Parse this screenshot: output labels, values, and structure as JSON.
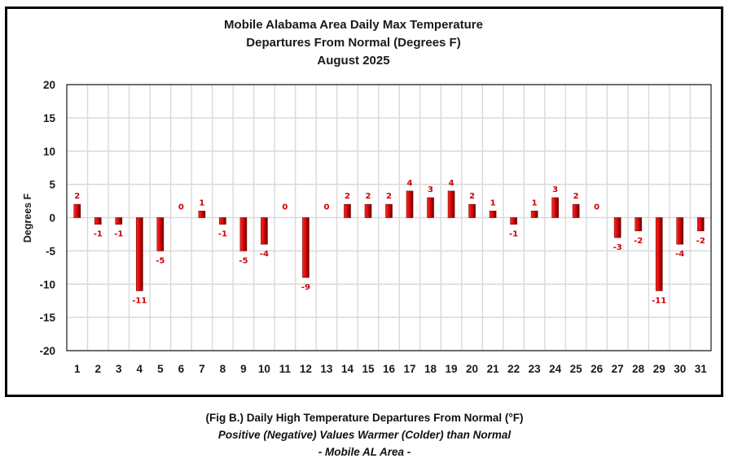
{
  "chart_data": {
    "type": "bar",
    "title": [
      "Mobile Alabama Area Daily Max Temperature",
      "Departures From Normal (Degrees F)",
      "August 2025"
    ],
    "xlabel": "",
    "ylabel": "Degrees F",
    "ylim": [
      -20,
      20
    ],
    "yticks": [
      20,
      15,
      10,
      5,
      0,
      -5,
      -10,
      -15,
      -20
    ],
    "grid": true,
    "categories": [
      "1",
      "2",
      "3",
      "4",
      "5",
      "6",
      "7",
      "8",
      "9",
      "10",
      "11",
      "12",
      "13",
      "14",
      "15",
      "16",
      "17",
      "18",
      "19",
      "20",
      "21",
      "22",
      "23",
      "24",
      "25",
      "26",
      "27",
      "28",
      "29",
      "30",
      "31"
    ],
    "values": [
      2,
      -1,
      -1,
      -11,
      -5,
      0,
      1,
      -1,
      -5,
      -4,
      0,
      -9,
      0,
      2,
      2,
      2,
      4,
      3,
      4,
      2,
      1,
      -1,
      1,
      3,
      2,
      0,
      -3,
      -2,
      -11,
      -4,
      -2
    ],
    "bar_color": "#cc0000",
    "label_color": "#cc0000"
  },
  "caption": {
    "line1": "(Fig B.) Daily High Temperature Departures From Normal (°F)",
    "line2": "Positive (Negative) Values Warmer (Colder) than Normal",
    "line3": "- Mobile AL Area -"
  }
}
